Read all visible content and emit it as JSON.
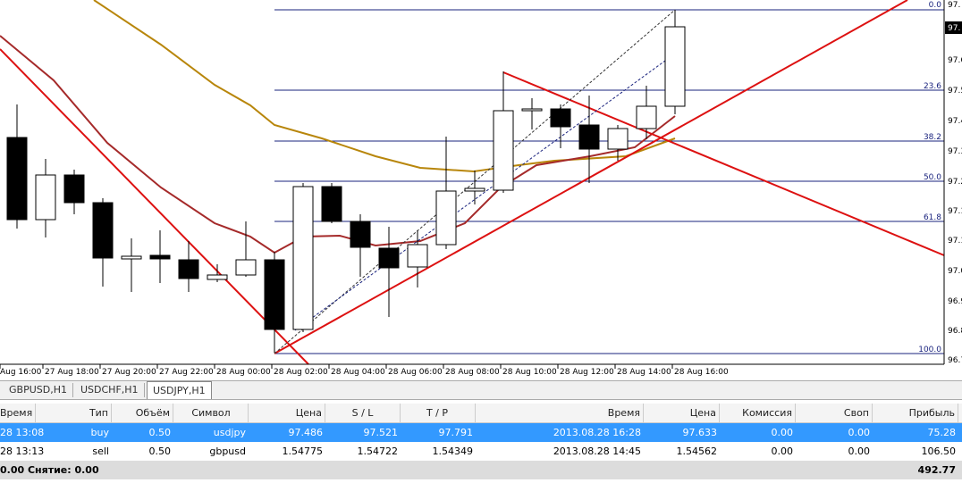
{
  "chart": {
    "price_labels": [
      "97.",
      "97.",
      "97.6",
      "97.5",
      "97.4",
      "97.3",
      "97.2",
      "97.1",
      "97.1",
      "97.0",
      "96.9",
      "96.8",
      "96.7"
    ],
    "fib_labels": [
      "0.0",
      "23.6",
      "38.2",
      "50.0",
      "61.8",
      "100.0"
    ],
    "time_labels": [
      "Aug 16:00",
      "27 Aug 18:00",
      "27 Aug 20:00",
      "27 Aug 22:00",
      "28 Aug 00:00",
      "28 Aug 02:00",
      "28 Aug 04:00",
      "28 Aug 06:00",
      "28 Aug 08:00",
      "28 Aug 10:00",
      "28 Aug 12:00",
      "28 Aug 14:00",
      "28 Aug 16:00"
    ]
  },
  "tabs": [
    "GBPUSD,H1",
    "USDCHF,H1",
    "USDJPY,H1"
  ],
  "table": {
    "headers": [
      "Время",
      "Тип",
      "Объём",
      "Символ",
      "Цена",
      "S / L",
      "T / P",
      "Время",
      "Цена",
      "Комиссия",
      "Своп",
      "Прибыль"
    ],
    "rows": [
      [
        "28 13:08",
        "buy",
        "0.50",
        "usdjpy",
        "97.486",
        "97.521",
        "97.791",
        "2013.08.28 16:28",
        "97.633",
        "0.00",
        "0.00",
        "75.28"
      ],
      [
        "28 13:13",
        "sell",
        "0.50",
        "gbpusd",
        "1.54775",
        "1.54722",
        "1.54349",
        "2013.08.28 14:45",
        "1.54562",
        "0.00",
        "0.00",
        "106.50"
      ]
    ],
    "total": [
      "0.00 Снятие: 0.00",
      "492.77"
    ]
  }
}
